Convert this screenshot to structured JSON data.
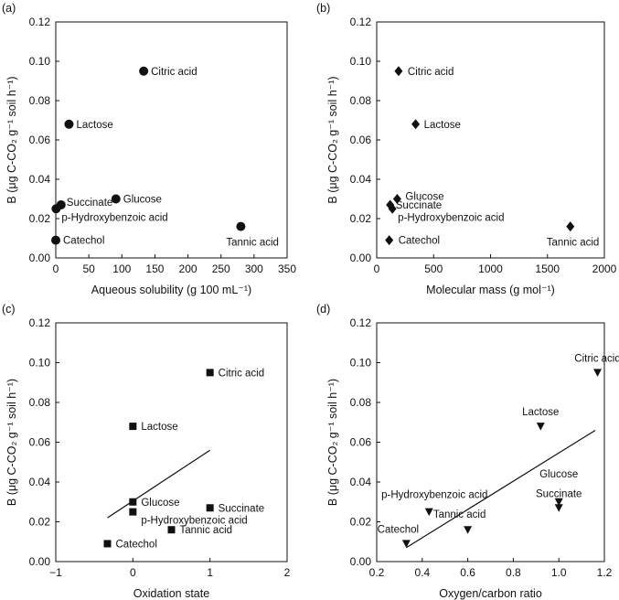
{
  "figure": {
    "panels": [
      "(a)",
      "(b)",
      "(c)",
      "(d)"
    ],
    "ylabel": "B (μg C-CO₂ g⁻¹ soil h⁻¹)"
  },
  "chart_data": [
    {
      "type": "scatter",
      "panel": "(a)",
      "xlabel": "Aqueous solubility (g 100 mL⁻¹)",
      "ylabel": "B (μg C-CO₂ g⁻¹ soil h⁻¹)",
      "xlim": [
        0,
        350
      ],
      "ylim": [
        0,
        0.12
      ],
      "xticks": [
        0,
        50,
        100,
        150,
        200,
        250,
        300,
        350
      ],
      "xtick_labels": [
        "0",
        "50",
        "100",
        "150",
        "200",
        "250",
        "300",
        "350"
      ],
      "yticks": [
        0,
        0.02,
        0.04,
        0.06,
        0.08,
        0.1,
        0.12
      ],
      "ytick_labels": [
        "0.00",
        "0.02",
        "0.04",
        "0.06",
        "0.08",
        "0.10",
        "0.12"
      ],
      "marker": "circle",
      "points": [
        {
          "label": "Citric acid",
          "x": 133,
          "y": 0.095
        },
        {
          "label": "Lactose",
          "x": 20,
          "y": 0.068
        },
        {
          "label": "Glucose",
          "x": 91,
          "y": 0.03
        },
        {
          "label": "Succinate",
          "x": 8,
          "y": 0.027
        },
        {
          "label": "p-Hydroxybenzoic acid",
          "x": 0.5,
          "y": 0.025
        },
        {
          "label": "Catechol",
          "x": 0,
          "y": 0.009
        },
        {
          "label": "Tannic acid",
          "x": 280,
          "y": 0.016
        }
      ]
    },
    {
      "type": "scatter",
      "panel": "(b)",
      "xlabel": "Molecular mass (g mol⁻¹)",
      "ylabel": "B (μg C-CO₂ g⁻¹ soil h⁻¹)",
      "xlim": [
        0,
        2000
      ],
      "ylim": [
        0,
        0.12
      ],
      "xticks": [
        0,
        500,
        1000,
        1500,
        2000
      ],
      "xtick_labels": [
        "0",
        "500",
        "1000",
        "1500",
        "2000"
      ],
      "yticks": [
        0,
        0.02,
        0.04,
        0.06,
        0.08,
        0.1,
        0.12
      ],
      "ytick_labels": [
        "0.00",
        "0.02",
        "0.04",
        "0.06",
        "0.08",
        "0.10",
        "0.12"
      ],
      "marker": "diamond",
      "points": [
        {
          "label": "Citric acid",
          "x": 192,
          "y": 0.095
        },
        {
          "label": "Lactose",
          "x": 342,
          "y": 0.068
        },
        {
          "label": "Glucose",
          "x": 180,
          "y": 0.03
        },
        {
          "label": "Succinate",
          "x": 118,
          "y": 0.027
        },
        {
          "label": "p-Hydroxybenzoic acid",
          "x": 138,
          "y": 0.025
        },
        {
          "label": "Catechol",
          "x": 110,
          "y": 0.009
        },
        {
          "label": "Tannic acid",
          "x": 1701,
          "y": 0.016
        }
      ]
    },
    {
      "type": "scatter",
      "panel": "(c)",
      "xlabel": "Oxidation state",
      "ylabel": "B (μg C-CO₂ g⁻¹ soil h⁻¹)",
      "xlim": [
        -1,
        2
      ],
      "ylim": [
        0,
        0.12
      ],
      "xticks": [
        -1,
        0,
        1,
        2
      ],
      "xtick_labels": [
        "−1",
        "0",
        "1",
        "2"
      ],
      "yticks": [
        0,
        0.02,
        0.04,
        0.06,
        0.08,
        0.1,
        0.12
      ],
      "ytick_labels": [
        "0.00",
        "0.02",
        "0.04",
        "0.06",
        "0.08",
        "0.10",
        "0.12"
      ],
      "marker": "square",
      "points": [
        {
          "label": "Citric acid",
          "x": 1.0,
          "y": 0.095
        },
        {
          "label": "Lactose",
          "x": 0.0,
          "y": 0.068
        },
        {
          "label": "Glucose",
          "x": 0.0,
          "y": 0.03
        },
        {
          "label": "Succinate",
          "x": 1.0,
          "y": 0.027
        },
        {
          "label": "p-Hydroxybenzoic acid",
          "x": 0.0,
          "y": 0.025
        },
        {
          "label": "Tannic acid",
          "x": 0.5,
          "y": 0.016
        },
        {
          "label": "Catechol",
          "x": -0.33,
          "y": 0.009
        }
      ],
      "fit_line": {
        "x": [
          -0.33,
          1.0
        ],
        "y": [
          0.022,
          0.056
        ]
      }
    },
    {
      "type": "scatter",
      "panel": "(d)",
      "xlabel": "Oxygen/carbon ratio",
      "ylabel": "B (μg C-CO₂ g⁻¹ soil h⁻¹)",
      "xlim": [
        0.2,
        1.2
      ],
      "ylim": [
        0,
        0.12
      ],
      "xticks": [
        0.2,
        0.4,
        0.6,
        0.8,
        1.0,
        1.2
      ],
      "xtick_labels": [
        "0.2",
        "0.4",
        "0.6",
        "0.8",
        "1.0",
        "1.2"
      ],
      "yticks": [
        0,
        0.02,
        0.04,
        0.06,
        0.08,
        0.1,
        0.12
      ],
      "ytick_labels": [
        "0.00",
        "0.02",
        "0.04",
        "0.06",
        "0.08",
        "0.10",
        "0.12"
      ],
      "marker": "triangle-down",
      "points": [
        {
          "label": "Citric acid",
          "x": 1.17,
          "y": 0.095
        },
        {
          "label": "Lactose",
          "x": 0.92,
          "y": 0.068
        },
        {
          "label": "Glucose",
          "x": 1.0,
          "y": 0.03
        },
        {
          "label": "Succinate",
          "x": 1.0,
          "y": 0.027
        },
        {
          "label": "p-Hydroxybenzoic acid",
          "x": 0.43,
          "y": 0.025
        },
        {
          "label": "Tannic acid",
          "x": 0.6,
          "y": 0.016
        },
        {
          "label": "Catechol",
          "x": 0.33,
          "y": 0.009
        }
      ],
      "fit_line": {
        "x": [
          0.33,
          1.16
        ],
        "y": [
          0.007,
          0.066
        ]
      }
    }
  ]
}
